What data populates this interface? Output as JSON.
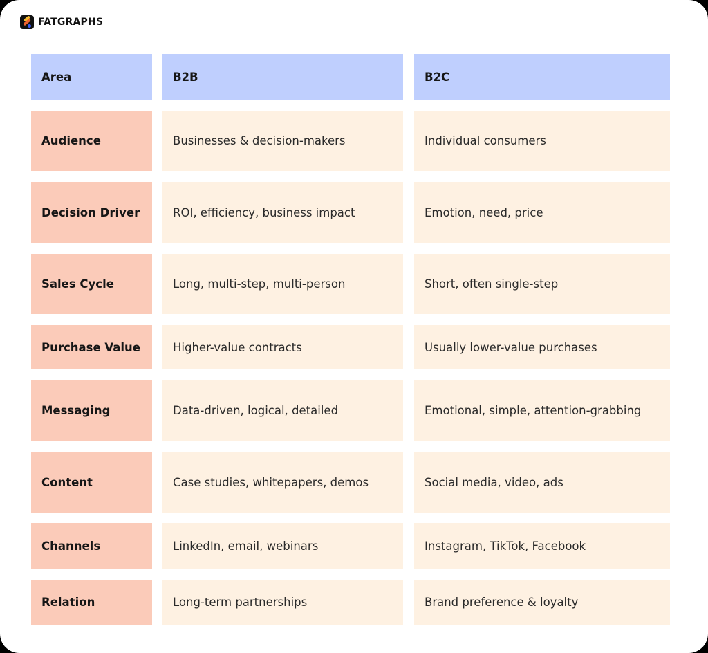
{
  "brand": {
    "name": "FATGRAPHS",
    "icon": "fatgraphs-logo-icon"
  },
  "colors": {
    "header": "#bfcffe",
    "area": "#fbcbb9",
    "value": "#fef1e2"
  },
  "table": {
    "headers": [
      "Area",
      "B2B",
      "B2C"
    ],
    "rows": [
      {
        "area": "Audience",
        "b2b": "Businesses & decision-makers",
        "b2c": "Individual consumers"
      },
      {
        "area": "Decision Driver",
        "b2b": "ROI, efficiency, business impact",
        "b2c": "Emotion, need, price"
      },
      {
        "area": "Sales Cycle",
        "b2b": "Long, multi-step, multi-person",
        "b2c": "Short, often single-step"
      },
      {
        "area": "Purchase Value",
        "b2b": "Higher-value contracts",
        "b2c": "Usually lower-value purchases"
      },
      {
        "area": "Messaging",
        "b2b": "Data-driven, logical, detailed",
        "b2c": "Emotional, simple, attention-grabbing"
      },
      {
        "area": "Content",
        "b2b": "Case studies, whitepapers, demos",
        "b2c": "Social media, video, ads"
      },
      {
        "area": "Channels",
        "b2b": "LinkedIn, email, webinars",
        "b2c": "Instagram, TikTok, Facebook"
      },
      {
        "area": "Relation",
        "b2b": "Long-term partnerships",
        "b2c": "Brand preference & loyalty"
      }
    ]
  }
}
